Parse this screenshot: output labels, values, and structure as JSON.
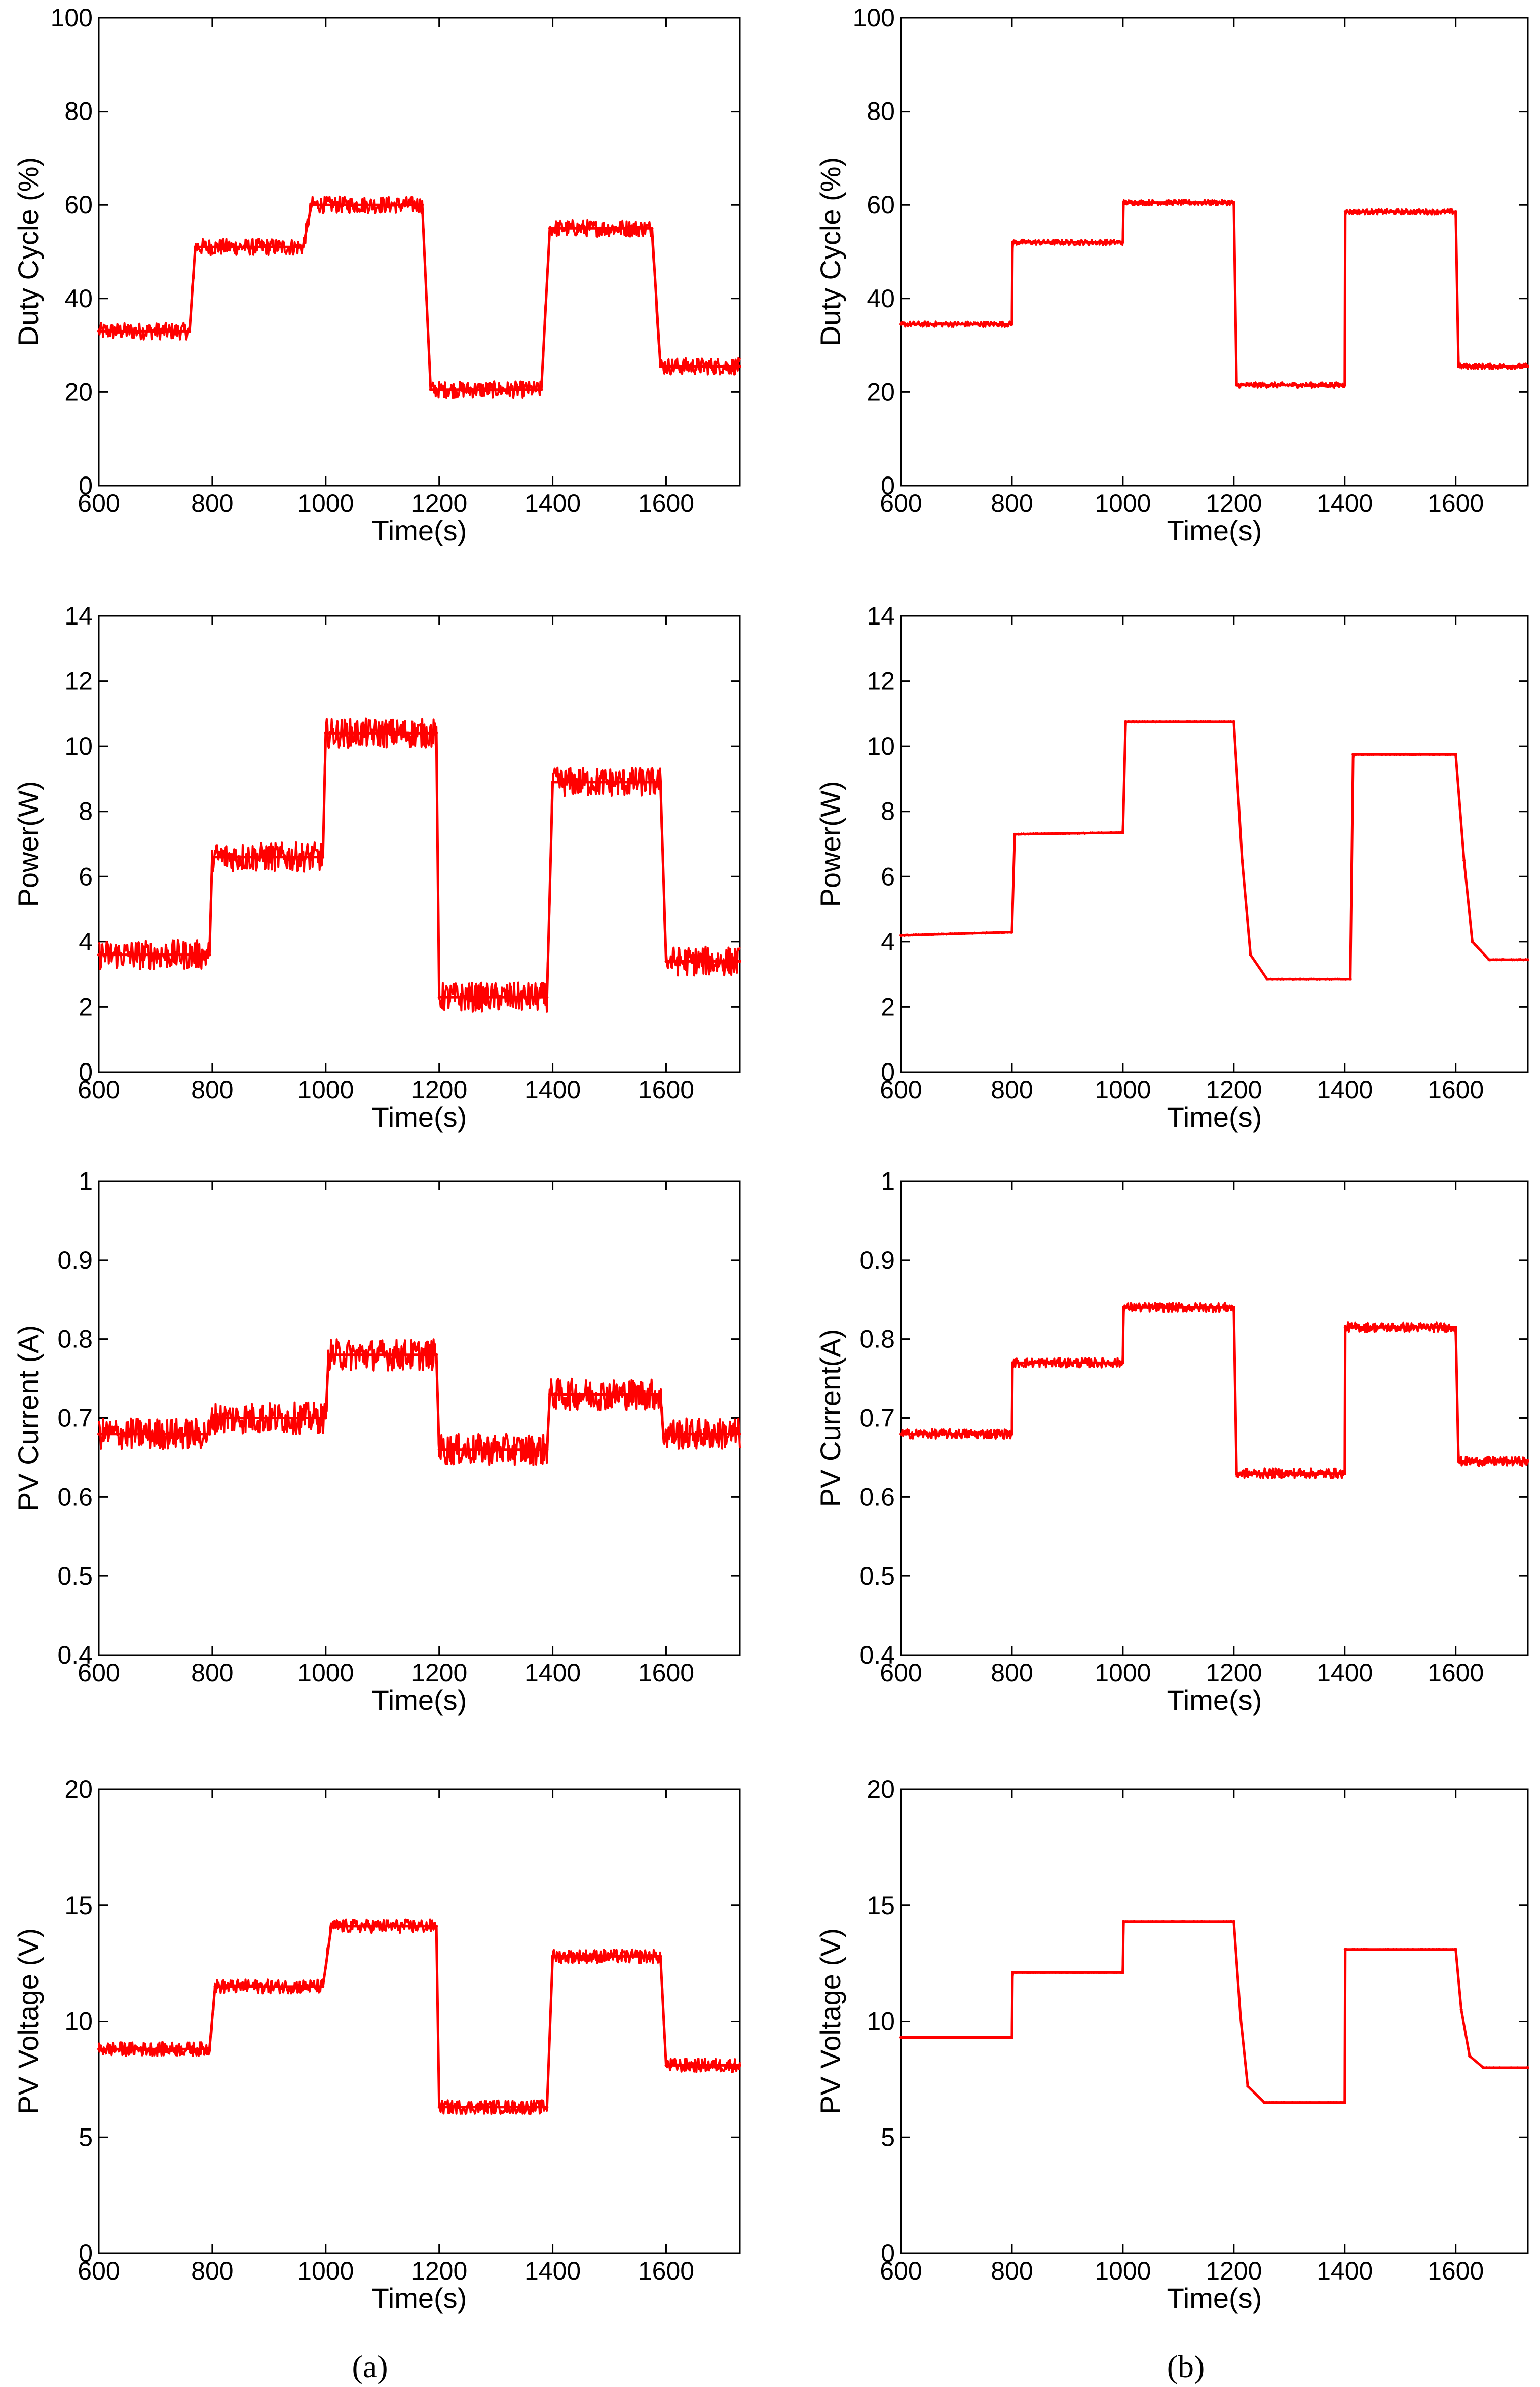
{
  "chart_data": [
    {
      "id": "a1",
      "type": "line",
      "column": "a",
      "xlabel": "Time(s)",
      "ylabel": "Duty Cycle (%)",
      "xlim": [
        600,
        1730
      ],
      "ylim": [
        0,
        100
      ],
      "xticks": [
        600,
        800,
        1000,
        1200,
        1400,
        1600
      ],
      "yticks": [
        0,
        20,
        40,
        60,
        80,
        100
      ],
      "line_color": "#ff0000",
      "noise": 1.8,
      "series": [
        {
          "name": "duty",
          "x": [
            600,
            760,
            770,
            960,
            975,
            1170,
            1185,
            1380,
            1395,
            1575,
            1590,
            1730
          ],
          "y": [
            33,
            33,
            51,
            51,
            60,
            60,
            20.5,
            20.5,
            55,
            55,
            25.5,
            25.5
          ]
        }
      ]
    },
    {
      "id": "b1",
      "type": "line",
      "column": "b",
      "xlabel": "Time(s)",
      "ylabel": "Duty Cycle (%)",
      "xlim": [
        600,
        1730
      ],
      "ylim": [
        0,
        100
      ],
      "xticks": [
        600,
        800,
        1000,
        1200,
        1400,
        1600
      ],
      "yticks": [
        0,
        20,
        40,
        60,
        80,
        100
      ],
      "line_color": "#ff0000",
      "noise": 0.6,
      "series": [
        {
          "name": "duty",
          "x": [
            600,
            800,
            801,
            1000,
            1001,
            1200,
            1205,
            1400,
            1401,
            1600,
            1605,
            1730
          ],
          "y": [
            34.5,
            34.5,
            52,
            52,
            60.5,
            60.5,
            21.5,
            21.5,
            58.5,
            58.5,
            25.5,
            25.5
          ]
        }
      ]
    },
    {
      "id": "a2",
      "type": "line",
      "column": "a",
      "xlabel": "Time(s)",
      "ylabel": "Power(W)",
      "xlim": [
        600,
        1730
      ],
      "ylim": [
        0,
        14
      ],
      "xticks": [
        600,
        800,
        1000,
        1200,
        1400,
        1600
      ],
      "yticks": [
        0,
        2,
        4,
        6,
        8,
        10,
        12,
        14
      ],
      "line_color": "#ff0000",
      "noise": 0.45,
      "series": [
        {
          "name": "power",
          "x": [
            600,
            795,
            800,
            995,
            1000,
            1195,
            1200,
            1390,
            1400,
            1590,
            1600,
            1730
          ],
          "y": [
            3.6,
            3.6,
            6.6,
            6.6,
            10.4,
            10.4,
            2.3,
            2.3,
            8.9,
            8.9,
            3.4,
            3.4
          ]
        }
      ]
    },
    {
      "id": "b2",
      "type": "line",
      "column": "b",
      "xlabel": "Time(s)",
      "ylabel": "Power(W)",
      "xlim": [
        600,
        1730
      ],
      "ylim": [
        0,
        14
      ],
      "xticks": [
        600,
        800,
        1000,
        1200,
        1400,
        1600
      ],
      "yticks": [
        0,
        2,
        4,
        6,
        8,
        10,
        12,
        14
      ],
      "line_color": "#ff0000",
      "noise": 0.02,
      "series": [
        {
          "name": "power",
          "x": [
            600,
            800,
            805,
            1000,
            1005,
            1200,
            1215,
            1230,
            1260,
            1410,
            1415,
            1600,
            1615,
            1630,
            1660,
            1730
          ],
          "y": [
            4.2,
            4.3,
            7.3,
            7.35,
            10.75,
            10.75,
            6.5,
            3.6,
            2.85,
            2.85,
            9.75,
            9.75,
            6.5,
            4.0,
            3.45,
            3.45
          ]
        }
      ]
    },
    {
      "id": "a3",
      "type": "line",
      "column": "a",
      "xlabel": "Time(s)",
      "ylabel": "PV Current (A)",
      "xlim": [
        600,
        1730
      ],
      "ylim": [
        0.4,
        1
      ],
      "xticks": [
        600,
        800,
        1000,
        1200,
        1400,
        1600
      ],
      "yticks": [
        0.4,
        0.5,
        0.6,
        0.7,
        0.8,
        0.9,
        1
      ],
      "line_color": "#ff0000",
      "noise": 0.02,
      "series": [
        {
          "name": "current",
          "x": [
            600,
            795,
            800,
            1000,
            1005,
            1195,
            1200,
            1390,
            1395,
            1590,
            1595,
            1730
          ],
          "y": [
            0.68,
            0.68,
            0.7,
            0.7,
            0.78,
            0.78,
            0.66,
            0.66,
            0.73,
            0.73,
            0.68,
            0.68
          ]
        }
      ]
    },
    {
      "id": "b3",
      "type": "line",
      "column": "b",
      "xlabel": "Time(s)",
      "ylabel": "PV Current(A)",
      "xlim": [
        600,
        1730
      ],
      "ylim": [
        0.4,
        1
      ],
      "xticks": [
        600,
        800,
        1000,
        1200,
        1400,
        1600
      ],
      "yticks": [
        0.4,
        0.5,
        0.6,
        0.7,
        0.8,
        0.9,
        1
      ],
      "line_color": "#ff0000",
      "noise": 0.006,
      "series": [
        {
          "name": "current",
          "x": [
            600,
            800,
            801,
            1000,
            1001,
            1200,
            1205,
            1400,
            1401,
            1600,
            1605,
            1730
          ],
          "y": [
            0.68,
            0.68,
            0.77,
            0.77,
            0.84,
            0.84,
            0.63,
            0.63,
            0.815,
            0.815,
            0.645,
            0.645
          ]
        }
      ]
    },
    {
      "id": "a4",
      "type": "line",
      "column": "a",
      "xlabel": "Time(s)",
      "ylabel": "PV Voltage (V)",
      "xlim": [
        600,
        1730
      ],
      "ylim": [
        0,
        20
      ],
      "xticks": [
        600,
        800,
        1000,
        1200,
        1400,
        1600
      ],
      "yticks": [
        0,
        5,
        10,
        15,
        20
      ],
      "line_color": "#ff0000",
      "noise": 0.3,
      "series": [
        {
          "name": "voltage",
          "x": [
            600,
            795,
            805,
            995,
            1010,
            1195,
            1200,
            1390,
            1400,
            1590,
            1600,
            1730
          ],
          "y": [
            8.8,
            8.8,
            11.5,
            11.5,
            14.1,
            14.1,
            6.3,
            6.3,
            12.8,
            12.8,
            8.1,
            8.1
          ]
        }
      ]
    },
    {
      "id": "b4",
      "type": "line",
      "column": "b",
      "xlabel": "Time(s)",
      "ylabel": "PV Voltage (V)",
      "xlim": [
        600,
        1730
      ],
      "ylim": [
        0,
        20
      ],
      "xticks": [
        600,
        800,
        1000,
        1200,
        1400,
        1600
      ],
      "yticks": [
        0,
        5,
        10,
        15,
        20
      ],
      "line_color": "#ff0000",
      "noise": 0.02,
      "series": [
        {
          "name": "voltage",
          "x": [
            600,
            800,
            801,
            1000,
            1001,
            1200,
            1212,
            1225,
            1255,
            1400,
            1401,
            1600,
            1610,
            1625,
            1650,
            1730
          ],
          "y": [
            9.3,
            9.3,
            12.1,
            12.1,
            14.3,
            14.3,
            10.2,
            7.2,
            6.5,
            6.5,
            13.1,
            13.1,
            10.5,
            8.5,
            8.0,
            8.0
          ]
        }
      ]
    }
  ],
  "captions": {
    "a": "(a)",
    "b": "(b)"
  }
}
